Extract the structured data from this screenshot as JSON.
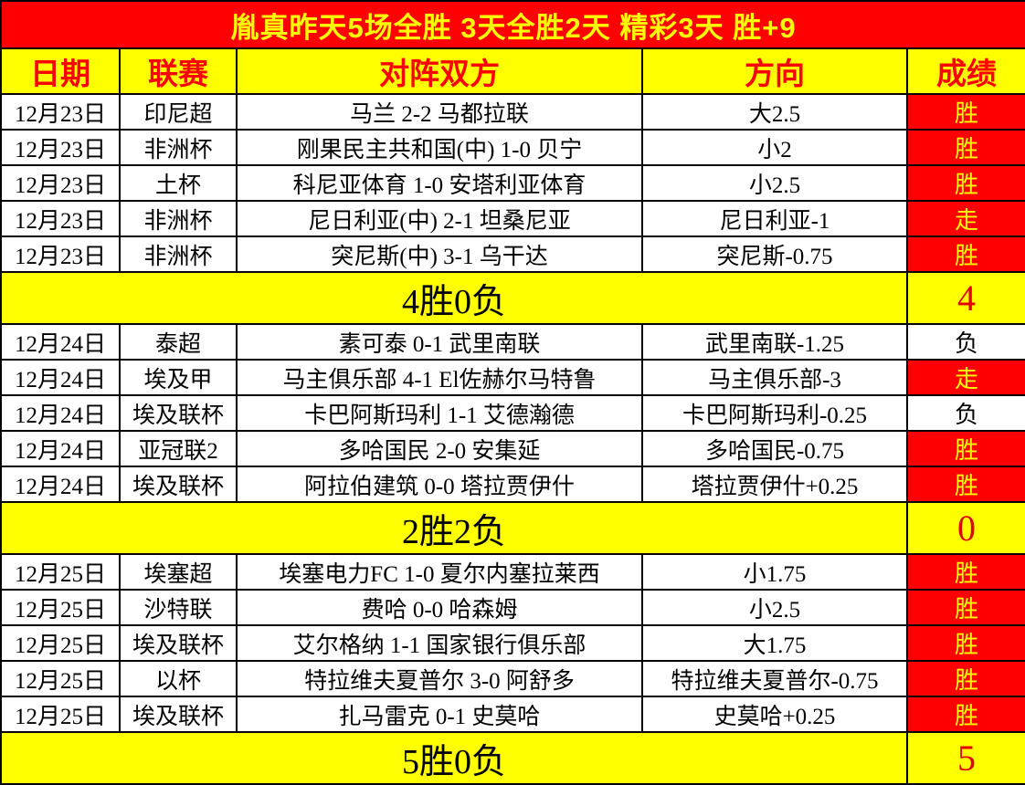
{
  "banner": {
    "text": "胤真昨天5场全胜  3天全胜2天  精彩3天  胜+9"
  },
  "colors": {
    "banner_bg": "#fe0000",
    "banner_text": "#ffff00",
    "header_bg": "#ffff00",
    "header_text": "#fe0000",
    "win_bg": "#fe0000",
    "win_text": "#ffff00",
    "summary_bg": "#ffff00",
    "summary_score_text": "#e00000"
  },
  "table": {
    "headers": [
      "日期",
      "联赛",
      "对阵双方",
      "方向",
      "成绩"
    ],
    "sections": [
      {
        "rows": [
          {
            "date": "12月23日",
            "league": "印尼超",
            "match": "马兰 2-2 马都拉联",
            "direction": "大2.5",
            "result": "胜",
            "highlight": true
          },
          {
            "date": "12月23日",
            "league": "非洲杯",
            "match": "刚果民主共和国(中) 1-0 贝宁",
            "direction": "小2",
            "result": "胜",
            "highlight": true
          },
          {
            "date": "12月23日",
            "league": "土杯",
            "match": "科尼亚体育 1-0 安塔利亚体育",
            "direction": "小2.5",
            "result": "胜",
            "highlight": true
          },
          {
            "date": "12月23日",
            "league": "非洲杯",
            "match": "尼日利亚(中) 2-1 坦桑尼亚",
            "direction": "尼日利亚-1",
            "result": "走",
            "highlight": true
          },
          {
            "date": "12月23日",
            "league": "非洲杯",
            "match": "突尼斯(中) 3-1 乌干达",
            "direction": "突尼斯-0.75",
            "result": "胜",
            "highlight": true
          }
        ],
        "summary": {
          "label": "4胜0负",
          "score": "4"
        }
      },
      {
        "rows": [
          {
            "date": "12月24日",
            "league": "泰超",
            "match": "素可泰 0-1 武里南联",
            "direction": "武里南联-1.25",
            "result": "负",
            "highlight": false
          },
          {
            "date": "12月24日",
            "league": "埃及甲",
            "match": "马主俱乐部 4-1 El佐赫尔马特鲁",
            "direction": "马主俱乐部-3",
            "result": "走",
            "highlight": true
          },
          {
            "date": "12月24日",
            "league": "埃及联杯",
            "match": "卡巴阿斯玛利 1-1 艾德瀚德",
            "direction": "卡巴阿斯玛利-0.25",
            "result": "负",
            "highlight": false
          },
          {
            "date": "12月24日",
            "league": "亚冠联2",
            "match": "多哈国民 2-0 安集延",
            "direction": "多哈国民-0.75",
            "result": "胜",
            "highlight": true
          },
          {
            "date": "12月24日",
            "league": "埃及联杯",
            "match": "阿拉伯建筑 0-0 塔拉贾伊什",
            "direction": "塔拉贾伊什+0.25",
            "result": "胜",
            "highlight": true
          }
        ],
        "summary": {
          "label": "2胜2负",
          "score": "0"
        }
      },
      {
        "rows": [
          {
            "date": "12月25日",
            "league": "埃塞超",
            "match": "埃塞电力FC 1-0 夏尔内塞拉莱西",
            "direction": "小1.75",
            "result": "胜",
            "highlight": true
          },
          {
            "date": "12月25日",
            "league": "沙特联",
            "match": "费哈 0-0 哈森姆",
            "direction": "小2.5",
            "result": "胜",
            "highlight": true
          },
          {
            "date": "12月25日",
            "league": "埃及联杯",
            "match": "艾尔格纳 1-1 国家银行俱乐部",
            "direction": "大1.75",
            "result": "胜",
            "highlight": true
          },
          {
            "date": "12月25日",
            "league": "以杯",
            "match": "特拉维夫夏普尔 3-0 阿舒多",
            "direction": "特拉维夫夏普尔-0.75",
            "result": "胜",
            "highlight": true
          },
          {
            "date": "12月25日",
            "league": "埃及联杯",
            "match": "扎马雷克 0-1 史莫哈",
            "direction": "史莫哈+0.25",
            "result": "胜",
            "highlight": true
          }
        ],
        "summary": {
          "label": "5胜0负",
          "score": "5",
          "final": true
        }
      }
    ]
  }
}
